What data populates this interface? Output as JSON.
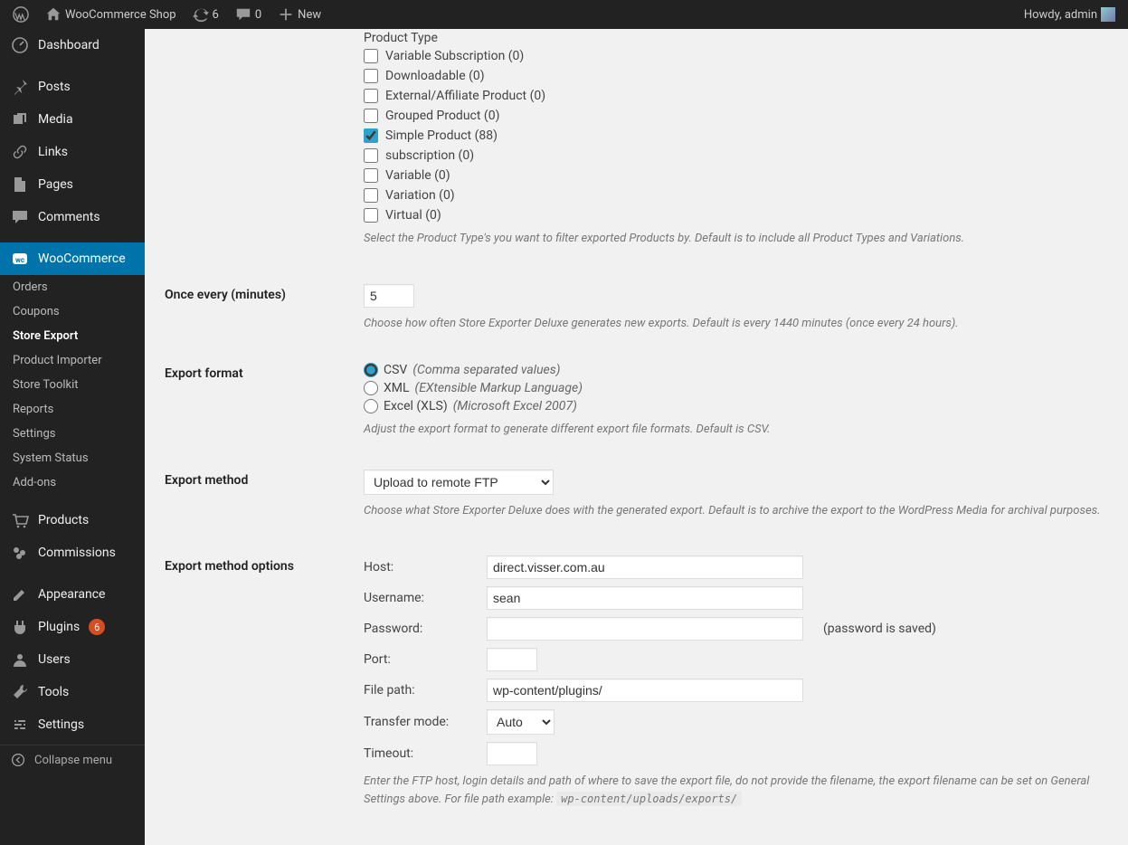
{
  "adminbar": {
    "site_name": "WooCommerce Shop",
    "updates_count": "6",
    "comments_count": "0",
    "new_label": "New",
    "howdy": "Howdy, admin"
  },
  "sidebar": {
    "items": [
      {
        "label": "Dashboard"
      },
      {
        "label": "Posts"
      },
      {
        "label": "Media"
      },
      {
        "label": "Links"
      },
      {
        "label": "Pages"
      },
      {
        "label": "Comments"
      },
      {
        "label": "WooCommerce"
      },
      {
        "label": "Products"
      },
      {
        "label": "Commissions"
      },
      {
        "label": "Appearance"
      },
      {
        "label": "Plugins"
      },
      {
        "label": "Users"
      },
      {
        "label": "Tools"
      },
      {
        "label": "Settings"
      }
    ],
    "plugins_badge": "6",
    "woo_submenu": [
      "Orders",
      "Coupons",
      "Store Export",
      "Product Importer",
      "Store Toolkit",
      "Reports",
      "Settings",
      "System Status",
      "Add-ons"
    ],
    "collapse_label": "Collapse menu"
  },
  "product_types": {
    "heading": "Product Type",
    "items": [
      {
        "label": "Variable Subscription (0)",
        "checked": false
      },
      {
        "label": "Downloadable (0)",
        "checked": false
      },
      {
        "label": "External/Affiliate Product (0)",
        "checked": false
      },
      {
        "label": "Grouped Product (0)",
        "checked": false
      },
      {
        "label": "Simple Product (88)",
        "checked": true
      },
      {
        "label": "subscription (0)",
        "checked": false
      },
      {
        "label": "Variable (0)",
        "checked": false
      },
      {
        "label": "Variation (0)",
        "checked": false
      },
      {
        "label": "Virtual (0)",
        "checked": false
      }
    ],
    "desc": "Select the Product Type's you want to filter exported Products by. Default is to include all Product Types and Variations."
  },
  "interval": {
    "label": "Once every (minutes)",
    "value": "5",
    "desc": "Choose how often Store Exporter Deluxe generates new exports. Default is every 1440 minutes (once every 24 hours)."
  },
  "format": {
    "label": "Export format",
    "options": [
      {
        "name": "CSV",
        "hint": "(Comma separated values)",
        "checked": true
      },
      {
        "name": "XML",
        "hint": "(EXtensible Markup Language)",
        "checked": false
      },
      {
        "name": "Excel (XLS)",
        "hint": "(Microsoft Excel 2007)",
        "checked": false
      }
    ],
    "desc": "Adjust the export format to generate different export file formats. Default is CSV."
  },
  "method": {
    "label": "Export method",
    "selected": "Upload to remote FTP",
    "desc": "Choose what Store Exporter Deluxe does with the generated export. Default is to archive the export to the WordPress Media for archival purposes."
  },
  "method_options": {
    "label": "Export method options",
    "fields": {
      "host_label": "Host:",
      "host_value": "direct.visser.com.au",
      "user_label": "Username:",
      "user_value": "sean",
      "pass_label": "Password:",
      "pass_value": "",
      "pass_saved": "(password is saved)",
      "port_label": "Port:",
      "port_value": "",
      "path_label": "File path:",
      "path_value": "wp-content/plugins/",
      "mode_label": "Transfer mode:",
      "mode_value": "Auto",
      "timeout_label": "Timeout:",
      "timeout_value": ""
    },
    "desc_pre": "Enter the FTP host, login details and path of where to save the export file, do not provide the filename, the export filename can be set on General Settings above. For file path example: ",
    "desc_code": "wp-content/uploads/exports/"
  }
}
